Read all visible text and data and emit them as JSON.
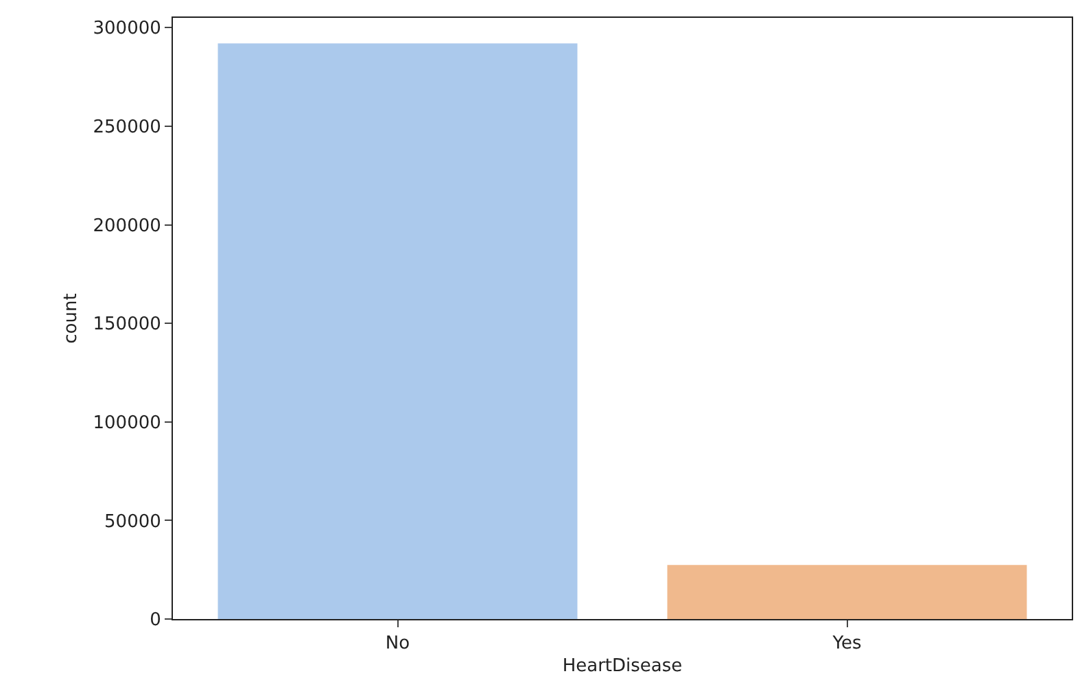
{
  "chart_data": {
    "type": "bar",
    "xlabel": "HeartDisease",
    "ylabel": "count",
    "categories": [
      "No",
      "Yes"
    ],
    "values": [
      292000,
      27400
    ],
    "colors": [
      "#abc9ec",
      "#f0b98d"
    ],
    "ylim": [
      0,
      305000
    ],
    "yticks": [
      0,
      50000,
      100000,
      150000,
      200000,
      250000,
      300000
    ],
    "grid": false
  }
}
